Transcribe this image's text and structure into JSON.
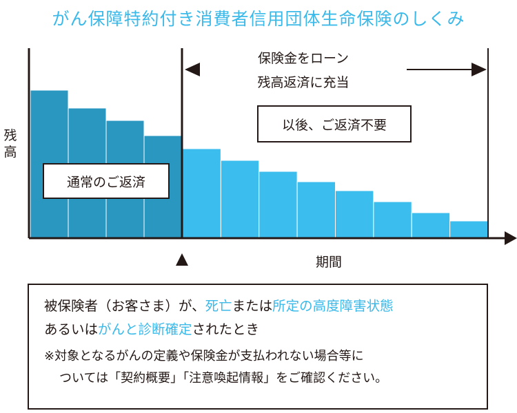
{
  "title": "がん保障特約付き消費者信用団体生命保険のしくみ",
  "colors": {
    "accent": "#3bb9e9",
    "dark_bar": "#2a97c0",
    "light_bar": "#3bbeee",
    "text": "#231815"
  },
  "chart_data": {
    "type": "bar",
    "ylabel": "残高",
    "xlabel": "期間",
    "phase_normal_values": [
      214,
      188,
      170,
      148
    ],
    "phase_covered_values": [
      129,
      112,
      96,
      81,
      68,
      52,
      36,
      24
    ],
    "marker": "▲",
    "label_normal": "通常のご返済",
    "label_covered": "保険金をローン残高返済に充当",
    "label_after": "以後、ご返済不要"
  },
  "cover_line1": "保険金をローン",
  "cover_line2": "残高返済に充当",
  "note": {
    "l1_a": "被保険者（お客さま）が、",
    "l1_b": "死亡",
    "l1_c": "または",
    "l1_d": "所定の高度障害状態",
    "l2_a": "あるいは",
    "l2_b": "がんと診断確定",
    "l2_c": "されたとき",
    "l3": "※対象となるがんの定義や保険金が支払われない場合等に",
    "l4": "ついては「契約概要」「注意喚起情報」をご確認ください。"
  }
}
